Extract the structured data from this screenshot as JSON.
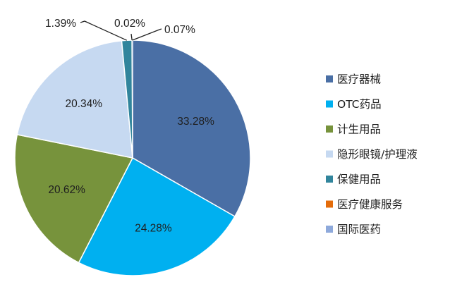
{
  "chart_data": {
    "type": "pie",
    "series": [
      {
        "name": "医疗器械",
        "value": 33.28,
        "label": "33.28%",
        "color": "#4A6FA5"
      },
      {
        "name": "OTC药品",
        "value": 24.28,
        "label": "24.28%",
        "color": "#00B0F0"
      },
      {
        "name": "计生用品",
        "value": 20.62,
        "label": "20.62%",
        "color": "#77933C"
      },
      {
        "name": "隐形眼镜/护理液",
        "value": 20.34,
        "label": "20.34%",
        "color": "#C6D9F1"
      },
      {
        "name": "保健用品",
        "value": 1.39,
        "label": "1.39%",
        "color": "#31859C"
      },
      {
        "name": "医疗健康服务",
        "value": 0.02,
        "label": "0.02%",
        "color": "#E46C0A"
      },
      {
        "name": "国际医药",
        "value": 0.07,
        "label": "0.07%",
        "color": "#8EA9DB"
      }
    ],
    "legend_position": "right"
  }
}
